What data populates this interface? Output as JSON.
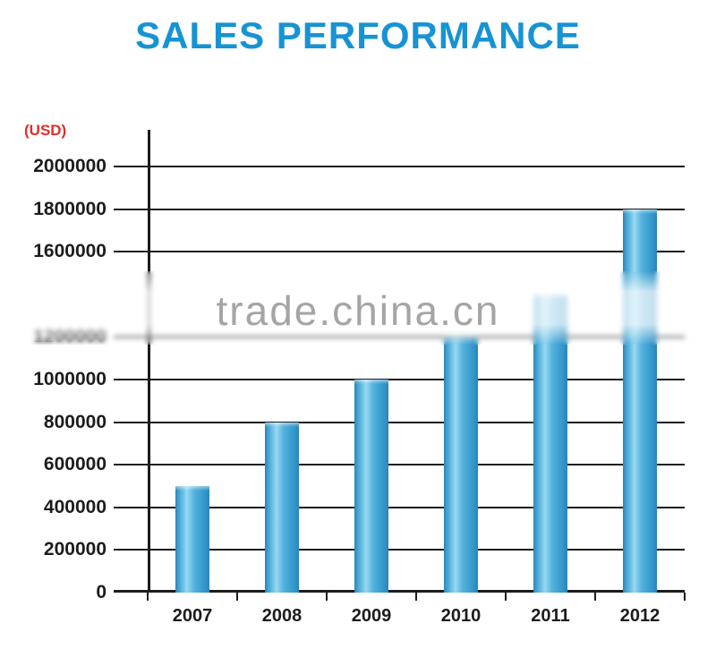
{
  "title": "SALES PERFORMANCE",
  "y_unit_label": "(USD)",
  "watermark": "trade.china.cn",
  "colors": {
    "title": "#1793d4",
    "unit_label": "#e62b2b",
    "bar": "#3fa6d8",
    "grid": "#1c1c1c",
    "watermark": "#8f8f8f"
  },
  "chart_data": {
    "type": "bar",
    "title": "SALES PERFORMANCE",
    "ylabel": "(USD)",
    "categories": [
      "2007",
      "2008",
      "2009",
      "2010",
      "2011",
      "2012"
    ],
    "values": [
      500000,
      800000,
      1000000,
      1200000,
      1400000,
      1800000
    ],
    "ylim": [
      0,
      2000000
    ],
    "yticks": [
      0,
      200000,
      400000,
      600000,
      800000,
      1000000,
      1200000,
      1600000,
      1800000,
      2000000
    ],
    "grid": true,
    "legend": false,
    "watermark": "trade.china.cn"
  }
}
